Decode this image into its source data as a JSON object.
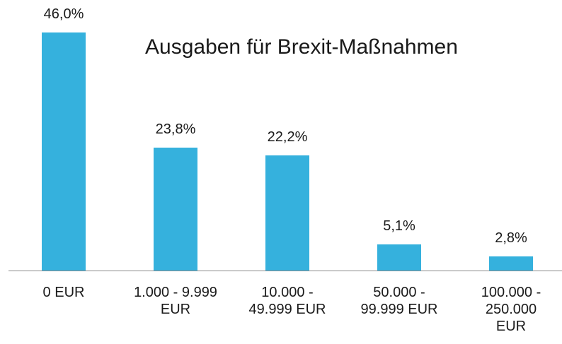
{
  "chart_data": {
    "type": "bar",
    "title": "Ausgaben für Brexit-Maßnahmen",
    "categories": [
      "0 EUR",
      "1.000 - 9.999\nEUR",
      "10.000 -\n49.999 EUR",
      "50.000 -\n99.999 EUR",
      "100.000 -\n250.000\nEUR"
    ],
    "values": [
      46.0,
      23.8,
      22.2,
      5.1,
      2.8
    ],
    "value_labels": [
      "46,0%",
      "23,8%",
      "22,2%",
      "5,1%",
      "2,8%"
    ],
    "color": "#35b1dd"
  }
}
